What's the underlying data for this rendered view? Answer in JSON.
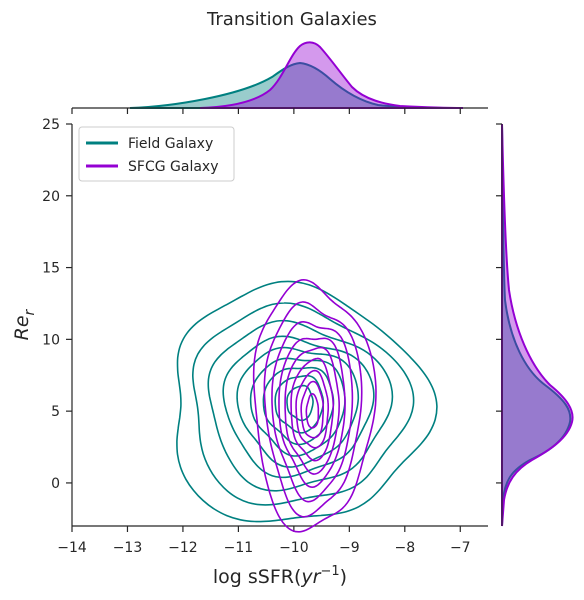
{
  "chart_data": {
    "type": "kde-joint",
    "title": "Transition Galaxies",
    "xlabel": "log sSFR(yr⁻¹)",
    "ylabel": "Re_r",
    "xlim": [
      -14,
      -6.5
    ],
    "ylim": [
      -3,
      25
    ],
    "xticks": [
      -14,
      -13,
      -12,
      -11,
      -10,
      -9,
      -8,
      -7
    ],
    "yticks": [
      0,
      5,
      10,
      15,
      20,
      25
    ],
    "legend_position": "top-left",
    "series": [
      {
        "name": "Field Galaxy",
        "color": "#008080",
        "x_peak": -9.9,
        "y_peak": 5.5,
        "contour_levels": 9
      },
      {
        "name": "SFCG Galaxy",
        "color": "#9400D3",
        "x_peak": -9.7,
        "y_peak": 5.0,
        "contour_levels": 9
      }
    ]
  }
}
